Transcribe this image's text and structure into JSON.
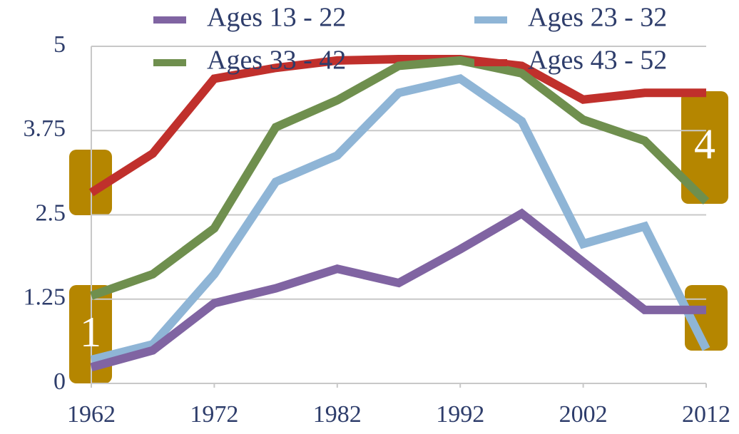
{
  "chart_data": {
    "type": "line",
    "x": [
      1962,
      1967,
      1972,
      1977,
      1982,
      1987,
      1992,
      1997,
      2002,
      2007,
      2012
    ],
    "xlim": [
      1962,
      2012
    ],
    "xticks": [
      1962,
      1972,
      1982,
      1992,
      2002,
      2012
    ],
    "ylim": [
      0,
      5
    ],
    "yticks": [
      0,
      1.25,
      2.5,
      3.75,
      5
    ],
    "grid": true,
    "legend": "top",
    "series": [
      {
        "name": "Ages 13 - 22",
        "color": "#8064a2",
        "values": [
          0.24,
          0.49,
          1.19,
          1.41,
          1.7,
          1.49,
          1.99,
          2.52,
          1.8,
          1.09,
          1.09
        ]
      },
      {
        "name": "Ages 23 - 32",
        "color": "#8fb5d6",
        "values": [
          0.35,
          0.58,
          1.62,
          2.99,
          3.38,
          4.31,
          4.52,
          3.89,
          2.07,
          2.33,
          0.51
        ]
      },
      {
        "name": "Ages 33 - 42",
        "color": "#6f8f4e",
        "values": [
          1.3,
          1.62,
          2.3,
          3.8,
          4.2,
          4.71,
          4.79,
          4.6,
          3.91,
          3.6,
          2.7
        ]
      },
      {
        "name": "Ages 43 - 52",
        "color": "#c0302c",
        "values": [
          2.83,
          3.41,
          4.52,
          4.68,
          4.79,
          4.81,
          4.81,
          4.71,
          4.21,
          4.31,
          4.31
        ]
      }
    ],
    "annotations": [
      "1",
      "4"
    ]
  }
}
